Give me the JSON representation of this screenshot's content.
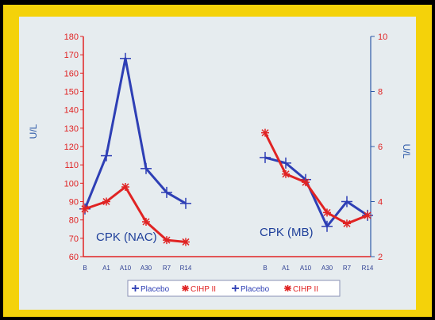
{
  "chart_data": {
    "type": "line",
    "x_categories": [
      "B",
      "A1",
      "A10",
      "A30",
      "R7",
      "R14"
    ],
    "left_axis": {
      "label": "U/L",
      "ylim": [
        60,
        180
      ],
      "ticks": [
        60,
        70,
        80,
        90,
        100,
        110,
        120,
        130,
        140,
        150,
        160,
        170,
        180
      ],
      "color": "#e02323"
    },
    "right_axis": {
      "label": "U/L",
      "ylim": [
        2,
        10
      ],
      "ticks": [
        2,
        4,
        6,
        8,
        10
      ],
      "color": "#2e5aa8"
    },
    "panels": [
      {
        "title": "CPK (NAC)",
        "axis": "left",
        "series": [
          {
            "name": "Placebo",
            "color": "#2e3fb5",
            "marker": "cross",
            "values": [
              86,
              115,
              168,
              108,
              95,
              89
            ]
          },
          {
            "name": "CIHP II",
            "color": "#e02323",
            "marker": "star",
            "values": [
              86,
              90,
              98,
              79,
              69,
              68
            ]
          }
        ]
      },
      {
        "title": "CPK (MB)",
        "axis": "right",
        "series": [
          {
            "name": "Placebo",
            "color": "#2e3fb5",
            "marker": "cross",
            "values": [
              5.6,
              5.4,
              4.8,
              3.1,
              4.0,
              3.5
            ]
          },
          {
            "name": "CIHP II",
            "color": "#e02323",
            "marker": "star",
            "values": [
              6.5,
              5.0,
              4.7,
              3.6,
              3.2,
              3.5
            ]
          }
        ]
      }
    ],
    "legend": {
      "placement": "bottom-center",
      "entries": [
        {
          "label": "Placebo",
          "color": "#2e3fb5",
          "marker": "cross"
        },
        {
          "label": "CIHP II",
          "color": "#e02323",
          "marker": "star"
        },
        {
          "label": "Placebo",
          "color": "#2e3fb5",
          "marker": "cross"
        },
        {
          "label": "CIHP II",
          "color": "#e02323",
          "marker": "star"
        }
      ]
    },
    "grid": false
  }
}
